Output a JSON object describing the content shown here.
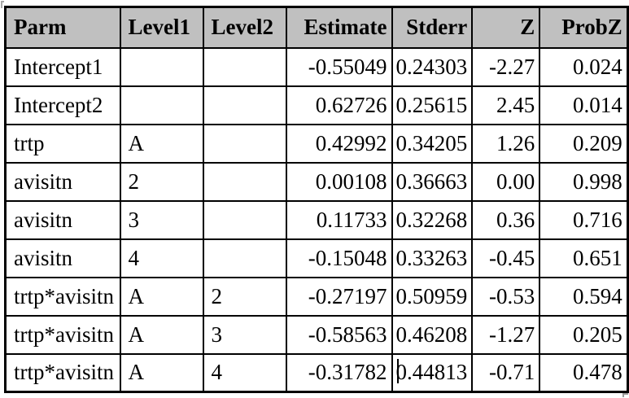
{
  "table": {
    "name": "parameter-estimates",
    "header_bg": "#c0c0c0",
    "border_color": "#000000",
    "text_color": "#000000",
    "columns": [
      {
        "label": "Parm",
        "align": "left"
      },
      {
        "label": "Level1",
        "align": "left"
      },
      {
        "label": "Level2",
        "align": "left"
      },
      {
        "label": "Estimate",
        "align": "right"
      },
      {
        "label": "Stderr",
        "align": "right"
      },
      {
        "label": "Z",
        "align": "right"
      },
      {
        "label": "ProbZ",
        "align": "right"
      }
    ],
    "rows": [
      [
        "Intercept1",
        "",
        "",
        "-0.55049",
        "0.24303",
        "-2.27",
        "0.024"
      ],
      [
        "Intercept2",
        "",
        "",
        "0.62726",
        "0.25615",
        "2.45",
        "0.014"
      ],
      [
        "trtp",
        "A",
        "",
        "0.42992",
        "0.34205",
        "1.26",
        "0.209"
      ],
      [
        "avisitn",
        "2",
        "",
        "0.00108",
        "0.36663",
        "0.00",
        "0.998"
      ],
      [
        "avisitn",
        "3",
        "",
        "0.11733",
        "0.32268",
        "0.36",
        "0.716"
      ],
      [
        "avisitn",
        "4",
        "",
        "-0.15048",
        "0.33263",
        "-0.45",
        "0.651"
      ],
      [
        "trtp*avisitn",
        "A",
        "2",
        "-0.27197",
        "0.50959",
        "-0.53",
        "0.594"
      ],
      [
        "trtp*avisitn",
        "A",
        "3",
        "-0.58563",
        "0.46208",
        "-1.27",
        "0.205"
      ],
      [
        "trtp*avisitn",
        "A",
        "4",
        "-0.31782",
        "0.44813",
        "-0.71",
        "0.478"
      ]
    ],
    "caret": {
      "visible": true,
      "location": "row 9, Stderr cell"
    }
  }
}
